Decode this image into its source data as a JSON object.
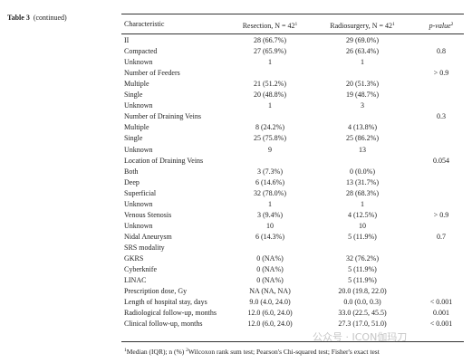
{
  "table_label": {
    "number": "Table 3",
    "note": "(continued)"
  },
  "table": {
    "header": [
      {
        "text": "Characteristic"
      },
      {
        "text": "Resection, N = 42",
        "sup": "1"
      },
      {
        "text": "Radiosurgery, N = 42",
        "sup": "1"
      },
      {
        "text": "p-value",
        "sup": "2"
      }
    ],
    "rows": [
      {
        "c": "II",
        "r": "28 (66.7%)",
        "s": "29 (69.0%)"
      },
      {
        "c": "Compacted",
        "r": "27 (65.9%)",
        "s": "26 (63.4%)",
        "p": "0.8"
      },
      {
        "c": "Unknown",
        "r": "1",
        "s": "1"
      },
      {
        "c": "Number of Feeders",
        "p": "> 0.9"
      },
      {
        "c": "Multiple",
        "r": "21 (51.2%)",
        "s": "20 (51.3%)"
      },
      {
        "c": "Single",
        "r": "20 (48.8%)",
        "s": "19 (48.7%)"
      },
      {
        "c": "Unknown",
        "r": "1",
        "s": "3"
      },
      {
        "c": "Number of Draining Veins",
        "p": "0.3"
      },
      {
        "c": "Multiple",
        "r": "8 (24.2%)",
        "s": "4 (13.8%)"
      },
      {
        "c": "Single",
        "r": "25 (75.8%)",
        "s": "25 (86.2%)"
      },
      {
        "c": "Unknown",
        "r": "9",
        "s": "13"
      },
      {
        "c": "Location of Draining Veins",
        "p": "0.054"
      },
      {
        "c": "Both",
        "r": "3 (7.3%)",
        "s": "0 (0.0%)"
      },
      {
        "c": "Deep",
        "r": "6 (14.6%)",
        "s": "13 (31.7%)"
      },
      {
        "c": "Superficial",
        "r": "32 (78.0%)",
        "s": "28 (68.3%)"
      },
      {
        "c": "Unknown",
        "r": "1",
        "s": "1"
      },
      {
        "c": "Venous Stenosis",
        "r": "3 (9.4%)",
        "s": "4 (12.5%)",
        "p": "> 0.9"
      },
      {
        "c": "Unknown",
        "r": "10",
        "s": "10"
      },
      {
        "c": "Nidal Aneurysm",
        "r": "6 (14.3%)",
        "s": "5 (11.9%)",
        "p": "0.7"
      },
      {
        "c": "SRS modality"
      },
      {
        "c": "GKRS",
        "r": "0 (NA%)",
        "s": "32 (76.2%)"
      },
      {
        "c": "Cyberknife",
        "r": "0 (NA%)",
        "s": "5 (11.9%)"
      },
      {
        "c": "LINAC",
        "r": "0 (NA%)",
        "s": "5 (11.9%)"
      },
      {
        "c": "Prescription dose, Gy",
        "r": "NA (NA, NA)",
        "s": "20.0 (19.8, 22.0)"
      },
      {
        "c": "Length of hospital stay, days",
        "r": "9.0 (4.0, 24.0)",
        "s": "0.0 (0.0, 0.3)",
        "p": "< 0.001"
      },
      {
        "c": "Radiological follow-up, months",
        "r": "12.0 (6.0, 24.0)",
        "s": "33.0 (22.5, 45.5)",
        "p": "0.001"
      },
      {
        "c": "Clinical follow-up, months",
        "r": "12.0 (6.0, 24.0)",
        "s": "27.3 (17.0, 51.0)",
        "p": "< 0.001"
      }
    ]
  },
  "footnote": [
    {
      "sup": "1",
      "text": "Median (IQR); n (%)"
    },
    {
      "sup": "2",
      "text": "Wilcoxon rank sum test; Pearson's Chi-squared test; Fisher's exact test"
    }
  ],
  "watermark": "公众号 · ICON伽玛刀"
}
